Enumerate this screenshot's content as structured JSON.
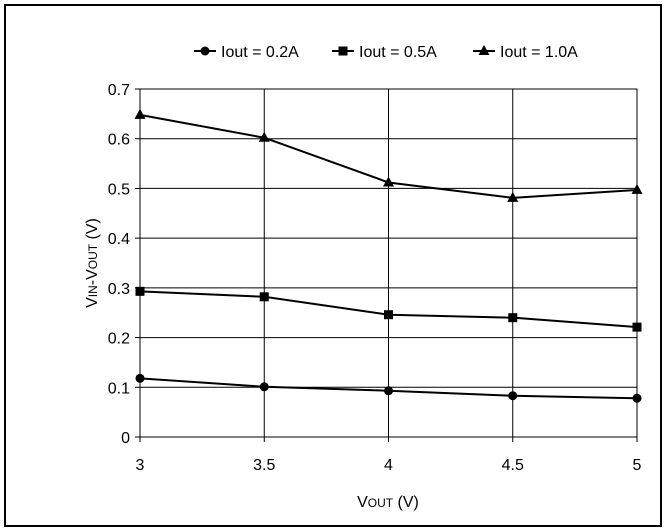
{
  "chart_data": {
    "type": "line",
    "xlabel": {
      "main1": "V",
      "sub1": "OUT",
      "unit": " (V)"
    },
    "ylabel": {
      "main1": "V",
      "sub1": "IN",
      "dash": "-V",
      "sub2": "OUT",
      "unit": " (V)"
    },
    "x": [
      3,
      3.5,
      4,
      4.5,
      5
    ],
    "xlim": [
      3,
      5
    ],
    "ylim": [
      0,
      0.7
    ],
    "xticks": [
      "3",
      "3.5",
      "4",
      "4.5",
      "5"
    ],
    "yticks": [
      "0",
      "0.1",
      "0.2",
      "0.3",
      "0.4",
      "0.5",
      "0.6",
      "0.7"
    ],
    "grid": true,
    "legend_position": "top",
    "series": [
      {
        "name": "Iout = 0.2A",
        "marker": "circle",
        "values": [
          0.118,
          0.101,
          0.093,
          0.083,
          0.078
        ]
      },
      {
        "name": "Iout = 0.5A",
        "marker": "square",
        "values": [
          0.293,
          0.282,
          0.246,
          0.24,
          0.221
        ]
      },
      {
        "name": "Iout = 1.0A",
        "marker": "triangle",
        "values": [
          0.648,
          0.602,
          0.512,
          0.481,
          0.497
        ]
      }
    ]
  }
}
